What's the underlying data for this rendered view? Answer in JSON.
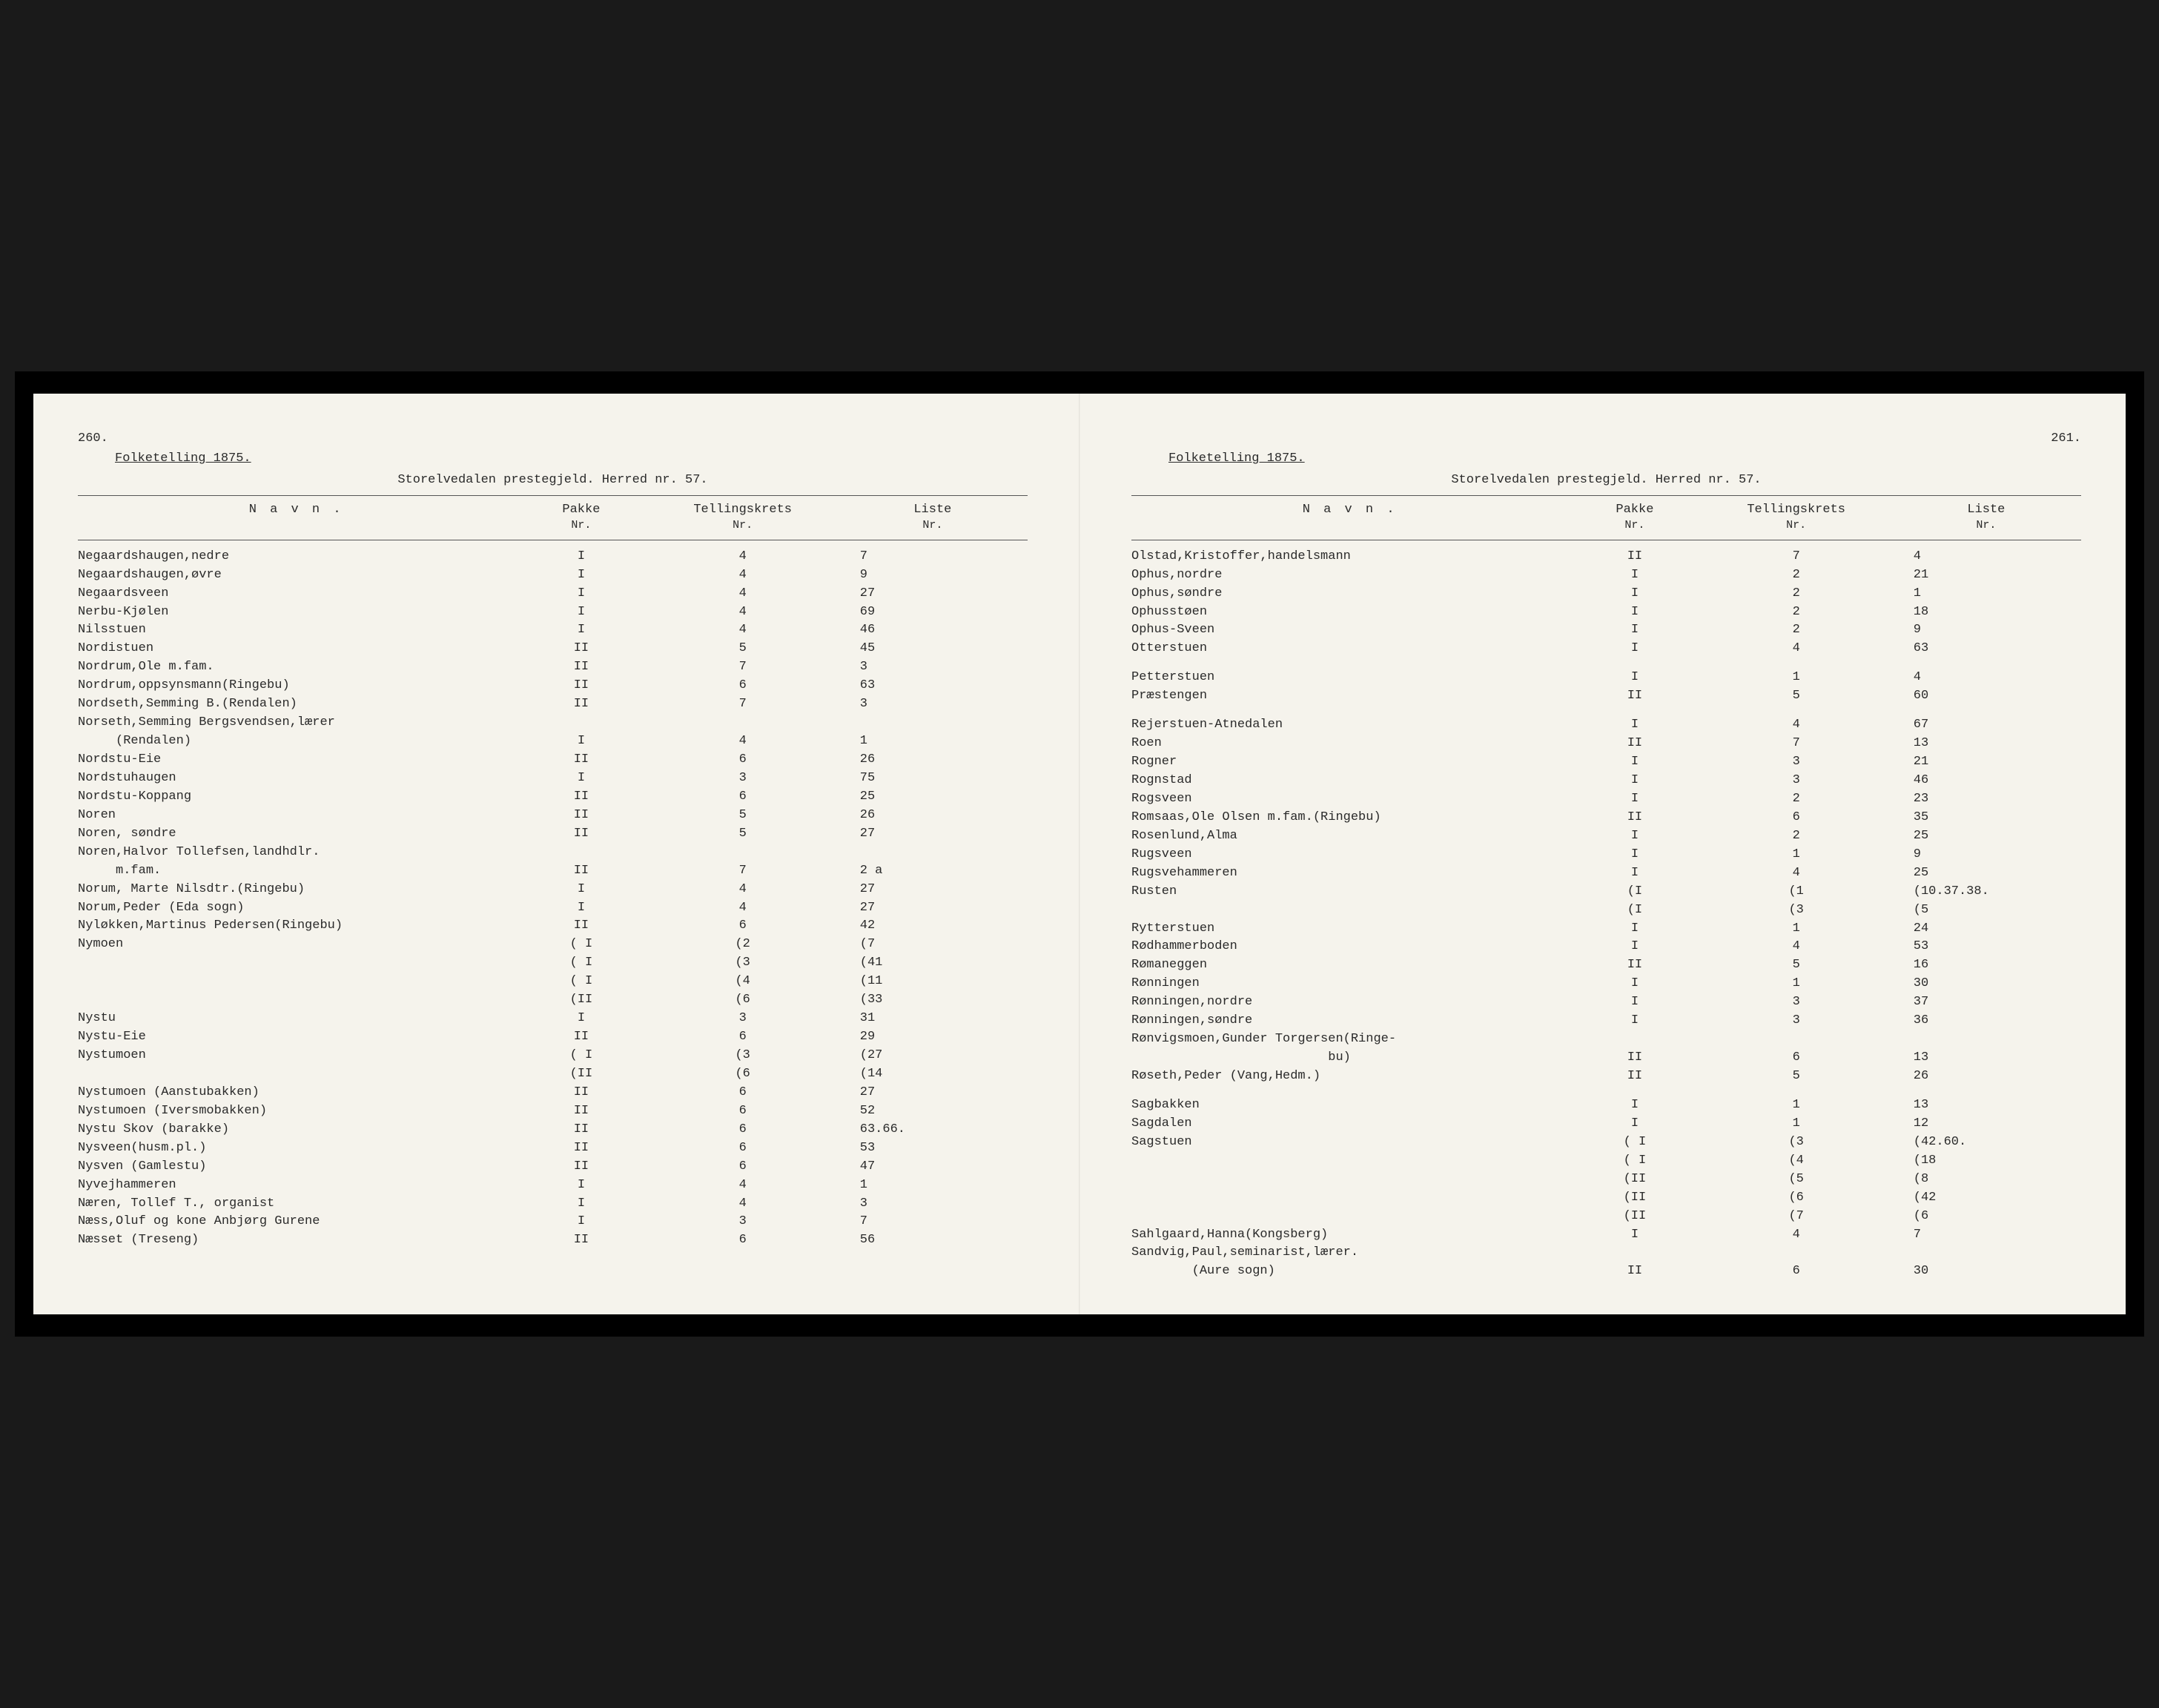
{
  "leftPage": {
    "pageNum": "260.",
    "heading": "Folketelling 1875.",
    "subheading": "Storelvedalen prestegjeld. Herred nr. 57.",
    "headers": {
      "navn": "N a v n .",
      "pakke": "Pakke",
      "pakkeSub": "Nr.",
      "telling": "Tellingskrets",
      "tellingSub": "Nr.",
      "liste": "Liste",
      "listeSub": "Nr."
    },
    "rows": [
      {
        "n": "Negaardshaugen,nedre",
        "p": "I",
        "t": "4",
        "l": "7"
      },
      {
        "n": "Negaardshaugen,øvre",
        "p": "I",
        "t": "4",
        "l": "9"
      },
      {
        "n": "Negaardsveen",
        "p": "I",
        "t": "4",
        "l": "27"
      },
      {
        "n": "Nerbu-Kjølen",
        "p": "I",
        "t": "4",
        "l": "69"
      },
      {
        "n": "Nilsstuen",
        "p": "I",
        "t": "4",
        "l": "46"
      },
      {
        "n": "Nordistuen",
        "p": "II",
        "t": "5",
        "l": "45"
      },
      {
        "n": "Nordrum,Ole m.fam.",
        "p": "II",
        "t": "7",
        "l": "3"
      },
      {
        "n": "Nordrum,oppsynsmann(Ringebu)",
        "p": "II",
        "t": "6",
        "l": "63"
      },
      {
        "n": "Nordseth,Semming B.(Rendalen)",
        "p": "II",
        "t": "7",
        "l": "3"
      },
      {
        "n": "Norseth,Semming Bergsvendsen,lærer",
        "p": "",
        "t": "",
        "l": ""
      },
      {
        "n": "     (Rendalen)",
        "p": "I",
        "t": "4",
        "l": "1"
      },
      {
        "n": "Nordstu-Eie",
        "p": "II",
        "t": "6",
        "l": "26"
      },
      {
        "n": "Nordstuhaugen",
        "p": "I",
        "t": "3",
        "l": "75"
      },
      {
        "n": "Nordstu-Koppang",
        "p": "II",
        "t": "6",
        "l": "25"
      },
      {
        "n": "Noren",
        "p": "II",
        "t": "5",
        "l": "26"
      },
      {
        "n": "Noren, søndre",
        "p": "II",
        "t": "5",
        "l": "27"
      },
      {
        "n": "Noren,Halvor Tollefsen,landhdlr.",
        "p": "",
        "t": "",
        "l": ""
      },
      {
        "n": "     m.fam.",
        "p": "II",
        "t": "7",
        "l": "2 a"
      },
      {
        "n": "Norum, Marte Nilsdtr.(Ringebu)",
        "p": "I",
        "t": "4",
        "l": "27"
      },
      {
        "n": "Norum,Peder (Eda sogn)",
        "p": "I",
        "t": "4",
        "l": "27"
      },
      {
        "n": "Nyløkken,Martinus Pedersen(Ringebu)",
        "p": "II",
        "t": "6",
        "l": "42"
      },
      {
        "n": "Nymoen",
        "p": "( I",
        "t": "(2",
        "l": "(7"
      },
      {
        "n": "",
        "p": "( I",
        "t": "(3",
        "l": "(41"
      },
      {
        "n": "",
        "p": "( I",
        "t": "(4",
        "l": "(11"
      },
      {
        "n": "",
        "p": "(II",
        "t": "(6",
        "l": "(33"
      },
      {
        "n": "Nystu",
        "p": "I",
        "t": "3",
        "l": "31"
      },
      {
        "n": "Nystu-Eie",
        "p": "II",
        "t": "6",
        "l": "29"
      },
      {
        "n": "Nystumoen",
        "p": "( I",
        "t": "(3",
        "l": "(27"
      },
      {
        "n": "",
        "p": "(II",
        "t": "(6",
        "l": "(14"
      },
      {
        "n": "Nystumoen (Aanstubakken)",
        "p": "II",
        "t": "6",
        "l": "27"
      },
      {
        "n": "Nystumoen (Iversmobakken)",
        "p": "II",
        "t": "6",
        "l": "52"
      },
      {
        "n": "Nystu Skov (barakke)",
        "p": "II",
        "t": "6",
        "l": "63.66."
      },
      {
        "n": "Nysveen(husm.pl.)",
        "p": "II",
        "t": "6",
        "l": "53"
      },
      {
        "n": "Nysven (Gamlestu)",
        "p": "II",
        "t": "6",
        "l": "47"
      },
      {
        "n": "Nyvejhammeren",
        "p": "I",
        "t": "4",
        "l": "1"
      },
      {
        "n": "Næren, Tollef T., organist",
        "p": "I",
        "t": "4",
        "l": "3"
      },
      {
        "n": "Næss,Oluf og kone Anbjørg Gurene",
        "p": "I",
        "t": "3",
        "l": "7"
      },
      {
        "n": "Næsset (Treseng)",
        "p": "II",
        "t": "6",
        "l": "56"
      }
    ]
  },
  "rightPage": {
    "pageNum": "261.",
    "heading": "Folketelling 1875.",
    "subheading": "Storelvedalen prestegjeld. Herred nr. 57.",
    "headers": {
      "navn": "N a v n .",
      "pakke": "Pakke",
      "pakkeSub": "Nr.",
      "telling": "Tellingskrets",
      "tellingSub": "Nr.",
      "liste": "Liste",
      "listeSub": "Nr."
    },
    "rows": [
      {
        "n": "Olstad,Kristoffer,handelsmann",
        "p": "II",
        "t": "7",
        "l": "4"
      },
      {
        "n": "Ophus,nordre",
        "p": "I",
        "t": "2",
        "l": "21"
      },
      {
        "n": "Ophus,søndre",
        "p": "I",
        "t": "2",
        "l": "1"
      },
      {
        "n": "Ophusstøen",
        "p": "I",
        "t": "2",
        "l": "18"
      },
      {
        "n": "Ophus-Sveen",
        "p": "I",
        "t": "2",
        "l": "9"
      },
      {
        "n": "Otterstuen",
        "p": "I",
        "t": "4",
        "l": "63"
      },
      {
        "gap": true
      },
      {
        "n": "Petterstuen",
        "p": "I",
        "t": "1",
        "l": "4"
      },
      {
        "n": "Præstengen",
        "p": "II",
        "t": "5",
        "l": "60"
      },
      {
        "gap": true
      },
      {
        "n": "Rejerstuen-Atnedalen",
        "p": "I",
        "t": "4",
        "l": "67"
      },
      {
        "n": "Roen",
        "p": "II",
        "t": "7",
        "l": "13"
      },
      {
        "n": "Rogner",
        "p": "I",
        "t": "3",
        "l": "21"
      },
      {
        "n": "Rognstad",
        "p": "I",
        "t": "3",
        "l": "46"
      },
      {
        "n": "Rogsveen",
        "p": "I",
        "t": "2",
        "l": "23"
      },
      {
        "n": "Romsaas,Ole Olsen m.fam.(Ringebu)",
        "p": "II",
        "t": "6",
        "l": "35"
      },
      {
        "n": "Rosenlund,Alma",
        "p": "I",
        "t": "2",
        "l": "25"
      },
      {
        "n": "Rugsveen",
        "p": "I",
        "t": "1",
        "l": "9"
      },
      {
        "n": "Rugsvehammeren",
        "p": "I",
        "t": "4",
        "l": "25"
      },
      {
        "n": "Rusten",
        "p": "(I",
        "t": "(1",
        "l": "(10.37.38."
      },
      {
        "n": "",
        "p": "(I",
        "t": "(3",
        "l": "(5"
      },
      {
        "n": "Rytterstuen",
        "p": "I",
        "t": "1",
        "l": "24"
      },
      {
        "n": "Rødhammerboden",
        "p": "I",
        "t": "4",
        "l": "53"
      },
      {
        "n": "Rømaneggen",
        "p": "II",
        "t": "5",
        "l": "16"
      },
      {
        "n": "Rønningen",
        "p": "I",
        "t": "1",
        "l": "30"
      },
      {
        "n": "Rønningen,nordre",
        "p": "I",
        "t": "3",
        "l": "37"
      },
      {
        "n": "Rønningen,søndre",
        "p": "I",
        "t": "3",
        "l": "36"
      },
      {
        "n": "Rønvigsmoen,Gunder Torgersen(Ringe-",
        "p": "",
        "t": "",
        "l": ""
      },
      {
        "n": "                          bu)",
        "p": "II",
        "t": "6",
        "l": "13"
      },
      {
        "n": "Røseth,Peder (Vang,Hedm.)",
        "p": "II",
        "t": "5",
        "l": "26"
      },
      {
        "gap": true
      },
      {
        "n": "Sagbakken",
        "p": "I",
        "t": "1",
        "l": "13"
      },
      {
        "n": "Sagdalen",
        "p": "I",
        "t": "1",
        "l": "12"
      },
      {
        "n": "Sagstuen",
        "p": "( I",
        "t": "(3",
        "l": "(42.60."
      },
      {
        "n": "",
        "p": "( I",
        "t": "(4",
        "l": "(18"
      },
      {
        "n": "",
        "p": "(II",
        "t": "(5",
        "l": "(8"
      },
      {
        "n": "",
        "p": "(II",
        "t": "(6",
        "l": "(42"
      },
      {
        "n": "",
        "p": "(II",
        "t": "(7",
        "l": "(6"
      },
      {
        "n": "Sahlgaard,Hanna(Kongsberg)",
        "p": "I",
        "t": "4",
        "l": "7"
      },
      {
        "n": "Sandvig,Paul,seminarist,lærer.",
        "p": "",
        "t": "",
        "l": ""
      },
      {
        "n": "        (Aure sogn)",
        "p": "II",
        "t": "6",
        "l": "30"
      }
    ]
  },
  "colors": {
    "pageBg": "#f5f3ec",
    "frameBg": "#000000",
    "text": "#2a2a2a",
    "rule": "#555555"
  },
  "typography": {
    "fontFamily": "Courier New, monospace",
    "baseSize": 17
  }
}
